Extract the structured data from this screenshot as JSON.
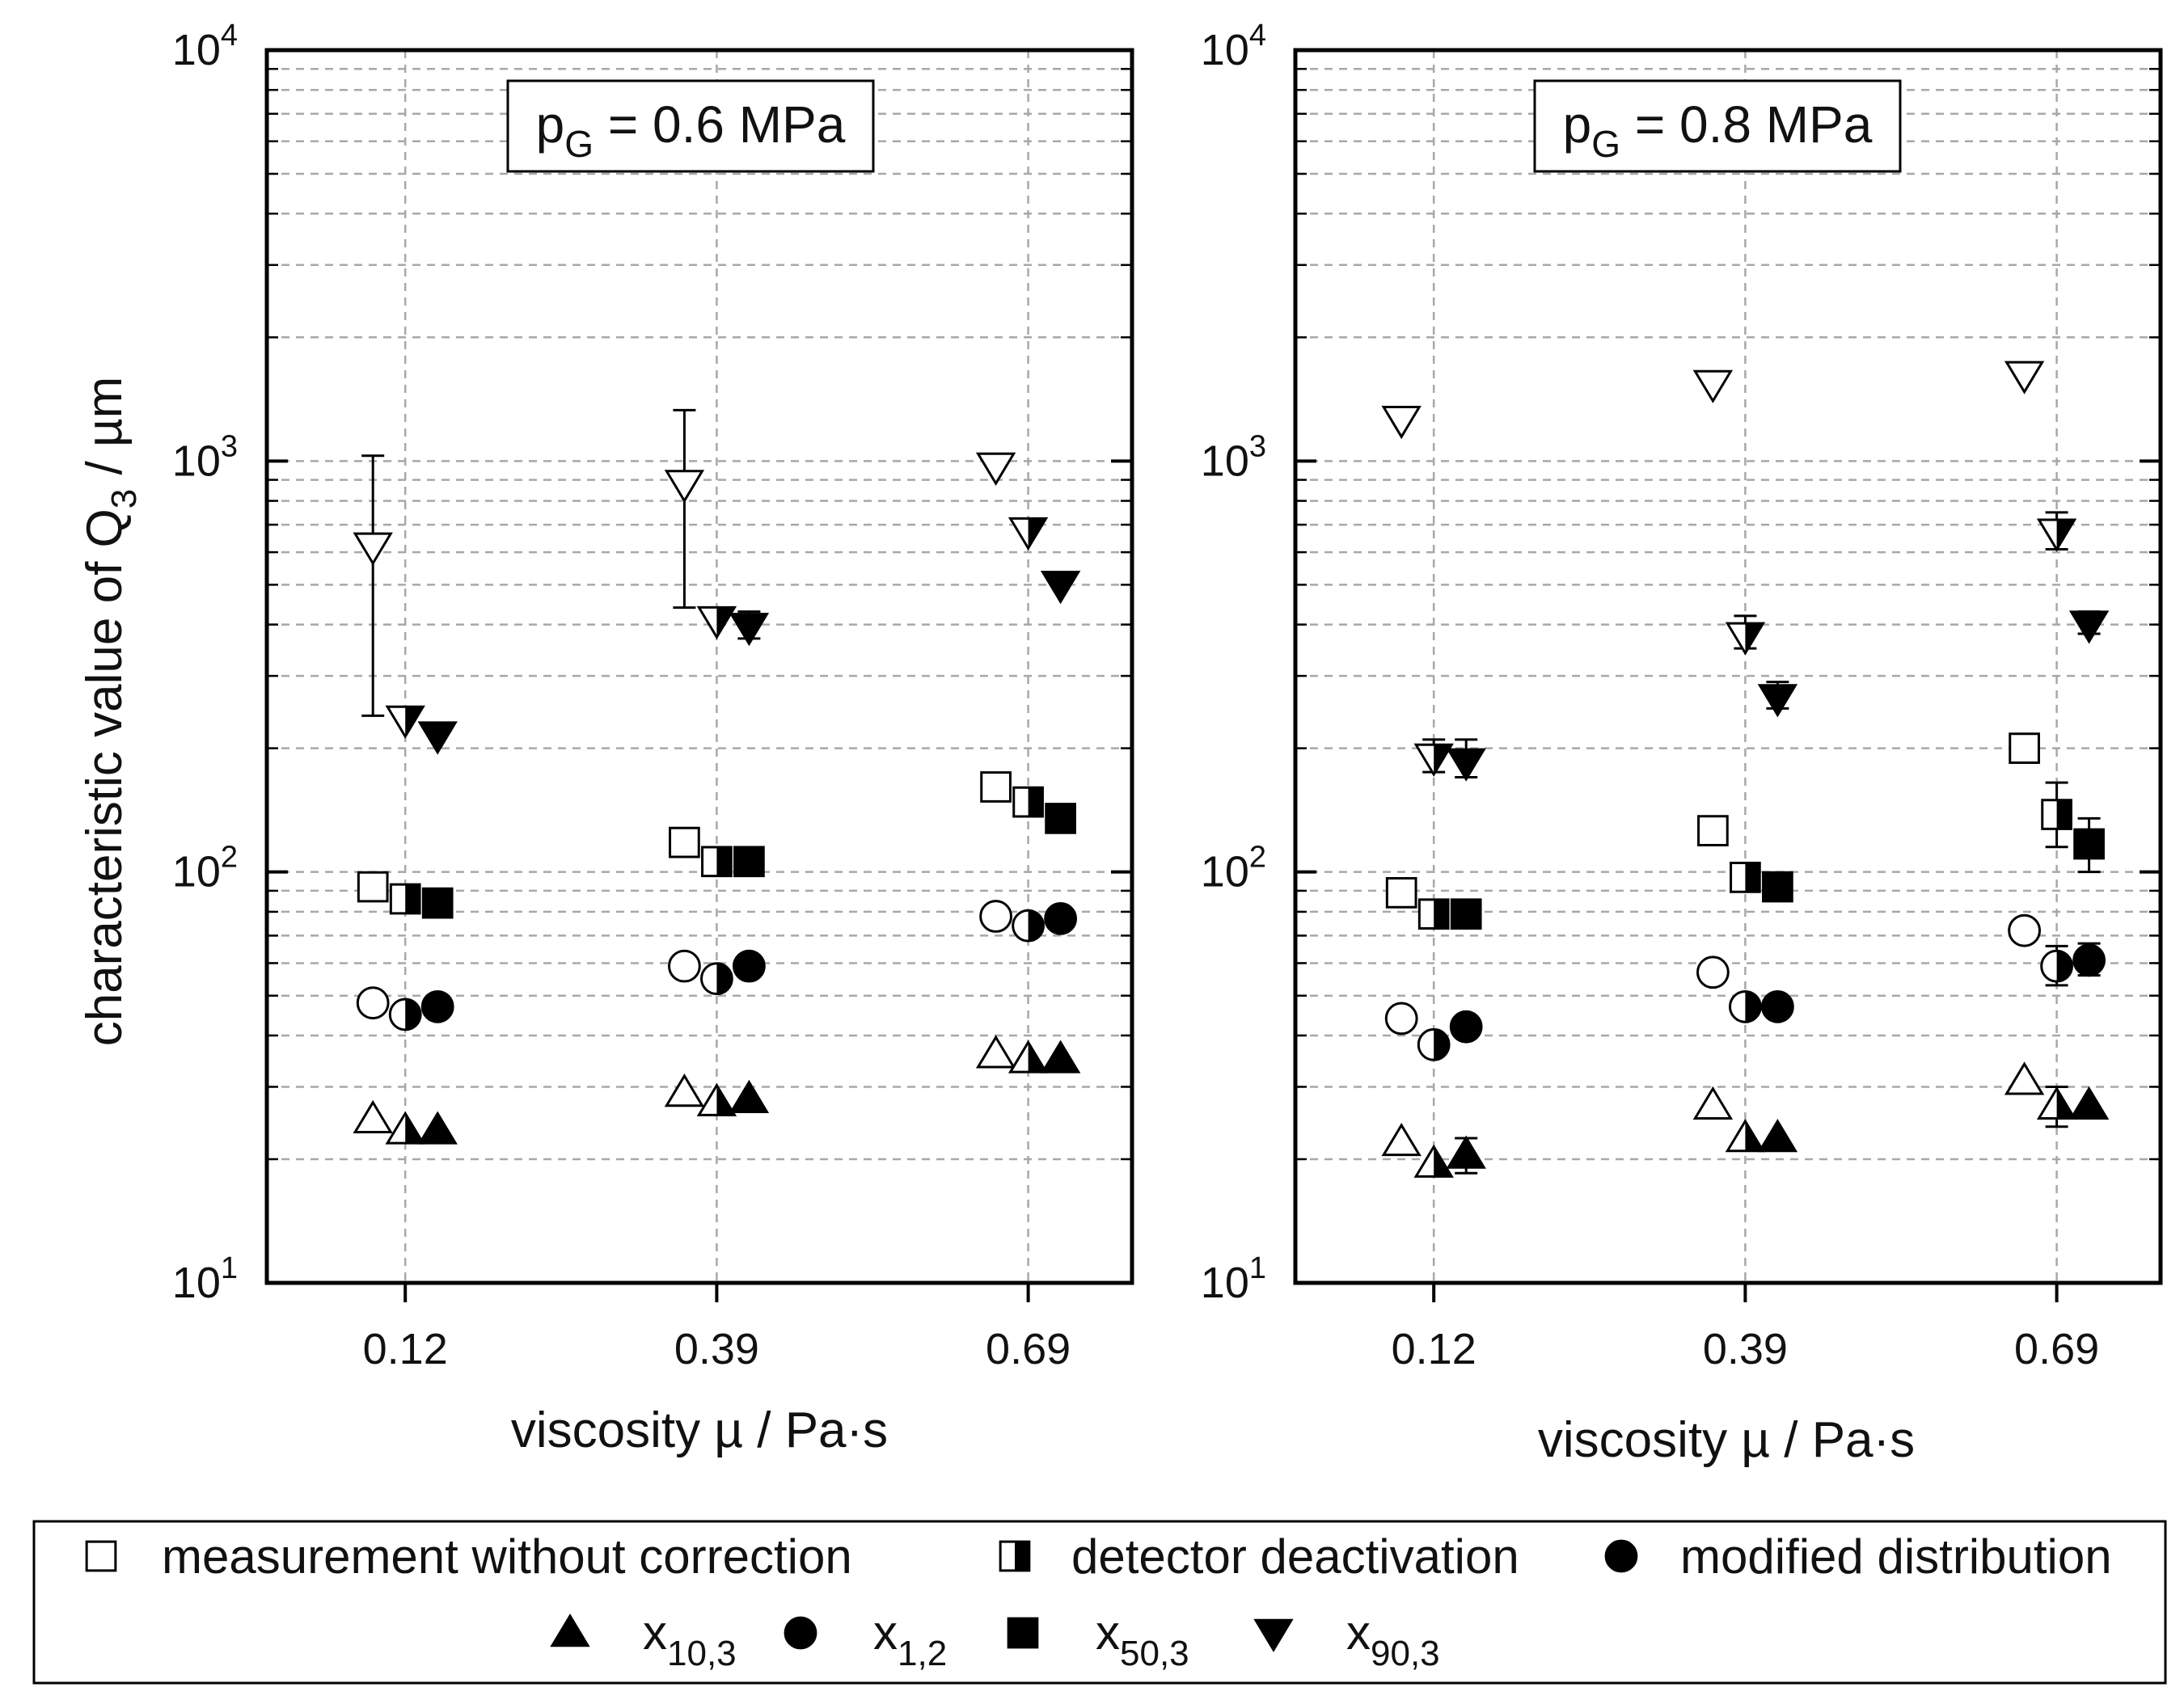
{
  "figure": {
    "y_axis_label": "characteristic value of Q",
    "y_axis_label_sub": "3",
    "y_axis_label_unit": " / µm",
    "legend": {
      "methods": [
        {
          "label": "measurement without correction",
          "marker": "open"
        },
        {
          "label": "detector deactivation",
          "marker": "half"
        },
        {
          "label": "modified distribution",
          "marker": "filled"
        }
      ],
      "quantities": [
        {
          "base": "x",
          "sub": "10,3",
          "shape": "triangle-up"
        },
        {
          "base": "x",
          "sub": "1,2",
          "shape": "circle"
        },
        {
          "base": "x",
          "sub": "50,3",
          "shape": "square"
        },
        {
          "base": "x",
          "sub": "90,3",
          "shape": "triangle-down"
        }
      ]
    }
  },
  "chart_data": [
    {
      "type": "scatter",
      "title_main": "p",
      "title_sub": "G",
      "title_rest": " = 0.6 MPa",
      "xlabel": "viscosity µ / Pa·s",
      "categories": [
        "0.12",
        "0.39",
        "0.69"
      ],
      "yscale": "log",
      "ylim": [
        10,
        10000
      ],
      "yticks": [
        {
          "value": 10,
          "base": "10",
          "exp": "1"
        },
        {
          "value": 100,
          "base": "10",
          "exp": "2"
        },
        {
          "value": 1000,
          "base": "10",
          "exp": "3"
        },
        {
          "value": 10000,
          "base": "10",
          "exp": "4"
        }
      ],
      "grid": true,
      "series": [
        {
          "method": "measurement without correction",
          "quantity": "x10,3",
          "values": [
            25,
            29,
            36
          ]
        },
        {
          "method": "measurement without correction",
          "quantity": "x1,2",
          "values": [
            48,
            59,
            78
          ]
        },
        {
          "method": "measurement without correction",
          "quantity": "x50,3",
          "values": [
            92,
            118,
            161
          ]
        },
        {
          "method": "measurement without correction",
          "quantity": "x90,3",
          "values": [
            620,
            880,
            970
          ],
          "errors": [
            [
              240,
              1030
            ],
            [
              440,
              1330
            ],
            null
          ]
        },
        {
          "method": "detector deactivation",
          "quantity": "x10,3",
          "values": [
            23.5,
            27.5,
            35
          ]
        },
        {
          "method": "detector deactivation",
          "quantity": "x1,2",
          "values": [
            45,
            55,
            74
          ]
        },
        {
          "method": "detector deactivation",
          "quantity": "x50,3",
          "values": [
            86,
            106,
            148
          ]
        },
        {
          "method": "detector deactivation",
          "quantity": "x90,3",
          "values": [
            235,
            410,
            675
          ]
        },
        {
          "method": "modified distribution",
          "quantity": "x10,3",
          "values": [
            23.5,
            28,
            35
          ]
        },
        {
          "method": "modified distribution",
          "quantity": "x1,2",
          "values": [
            47,
            59,
            77
          ]
        },
        {
          "method": "modified distribution",
          "quantity": "x50,3",
          "values": [
            84,
            106,
            135
          ]
        },
        {
          "method": "modified distribution",
          "quantity": "x90,3",
          "values": [
            215,
            395,
            500
          ],
          "errors": [
            null,
            [
              370,
              430
            ],
            null
          ]
        }
      ]
    },
    {
      "type": "scatter",
      "title_main": "p",
      "title_sub": "G",
      "title_rest": " = 0.8 MPa",
      "xlabel": "viscosity µ / Pa·s",
      "categories": [
        "0.12",
        "0.39",
        "0.69"
      ],
      "yscale": "log",
      "ylim": [
        10,
        10000
      ],
      "yticks": [
        {
          "value": 10,
          "base": "10",
          "exp": "1"
        },
        {
          "value": 100,
          "base": "10",
          "exp": "2"
        },
        {
          "value": 1000,
          "base": "10",
          "exp": "3"
        },
        {
          "value": 10000,
          "base": "10",
          "exp": "4"
        }
      ],
      "grid": true,
      "series": [
        {
          "method": "measurement without correction",
          "quantity": "x10,3",
          "values": [
            22,
            27,
            31
          ]
        },
        {
          "method": "measurement without correction",
          "quantity": "x1,2",
          "values": [
            44,
            57,
            72
          ]
        },
        {
          "method": "measurement without correction",
          "quantity": "x50,3",
          "values": [
            89,
            126,
            200
          ]
        },
        {
          "method": "measurement without correction",
          "quantity": "x90,3",
          "values": [
            1260,
            1540,
            1620
          ]
        },
        {
          "method": "detector deactivation",
          "quantity": "x10,3",
          "values": [
            19.5,
            22.5,
            27
          ],
          "errors": [
            null,
            null,
            [
              24,
              30
            ]
          ]
        },
        {
          "method": "detector deactivation",
          "quantity": "x1,2",
          "values": [
            38,
            47,
            59
          ],
          "errors": [
            null,
            null,
            [
              53,
              66
            ]
          ]
        },
        {
          "method": "detector deactivation",
          "quantity": "x50,3",
          "values": [
            79,
            97,
            138
          ],
          "errors": [
            null,
            null,
            [
              115,
              165
            ]
          ]
        },
        {
          "method": "detector deactivation",
          "quantity": "x90,3",
          "values": [
            190,
            375,
            670
          ],
          "errors": [
            [
              175,
              210
            ],
            [
              350,
              420
            ],
            [
              610,
              750
            ]
          ]
        },
        {
          "method": "modified distribution",
          "quantity": "x10,3",
          "values": [
            20.5,
            22.5,
            27
          ],
          "errors": [
            [
              18.5,
              22.5
            ],
            null,
            null
          ]
        },
        {
          "method": "modified distribution",
          "quantity": "x1,2",
          "values": [
            42,
            47,
            61
          ],
          "errors": [
            null,
            null,
            [
              56,
              67
            ]
          ]
        },
        {
          "method": "modified distribution",
          "quantity": "x50,3",
          "values": [
            79,
            92,
            117
          ],
          "errors": [
            null,
            null,
            [
              100,
              135
            ]
          ]
        },
        {
          "method": "modified distribution",
          "quantity": "x90,3",
          "values": [
            185,
            265,
            400
          ],
          "errors": [
            [
              170,
              210
            ],
            [
              250,
              290
            ],
            [
              380,
              430
            ]
          ]
        }
      ]
    }
  ]
}
